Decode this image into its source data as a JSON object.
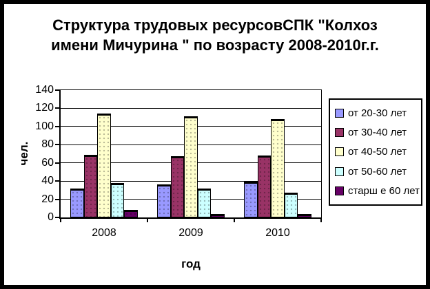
{
  "chart_data": {
    "type": "bar",
    "title": "Структура трудовых ресурсовСПК \"Колхоз имени Мичурина \" по возрасту 2008-2010г.г.",
    "title_lines": [
      "Структура трудовых ресурсовСПК \"Колхоз",
      "имени Мичурина \" по возрасту 2008-2010г.г."
    ],
    "categories": [
      "2008",
      "2009",
      "2010"
    ],
    "series": [
      {
        "name": "от 20-30 лет",
        "color": "#9999FF",
        "values": [
          32,
          36,
          39
        ]
      },
      {
        "name": "от 30-40 лет",
        "color": "#993366",
        "values": [
          69,
          67,
          68
        ]
      },
      {
        "name": "от 40-50 лет",
        "color": "#FFFFCC",
        "values": [
          114,
          111,
          108
        ]
      },
      {
        "name": "от 50-60 лет",
        "color": "#CCFFFF",
        "values": [
          38,
          32,
          27
        ]
      },
      {
        "name": "старш е 60 лет",
        "color": "#660066",
        "values": [
          8,
          4,
          4
        ]
      }
    ],
    "xlabel": "год",
    "ylabel": "чел.",
    "ylim": [
      0,
      140
    ],
    "ytick_step": 20,
    "yticks": [
      0,
      20,
      40,
      60,
      80,
      100,
      120,
      140
    ],
    "grid": true,
    "legend_position": "right",
    "colors": {
      "axis": "#000000",
      "background": "#FFFFFF",
      "frame": "#000000"
    }
  }
}
